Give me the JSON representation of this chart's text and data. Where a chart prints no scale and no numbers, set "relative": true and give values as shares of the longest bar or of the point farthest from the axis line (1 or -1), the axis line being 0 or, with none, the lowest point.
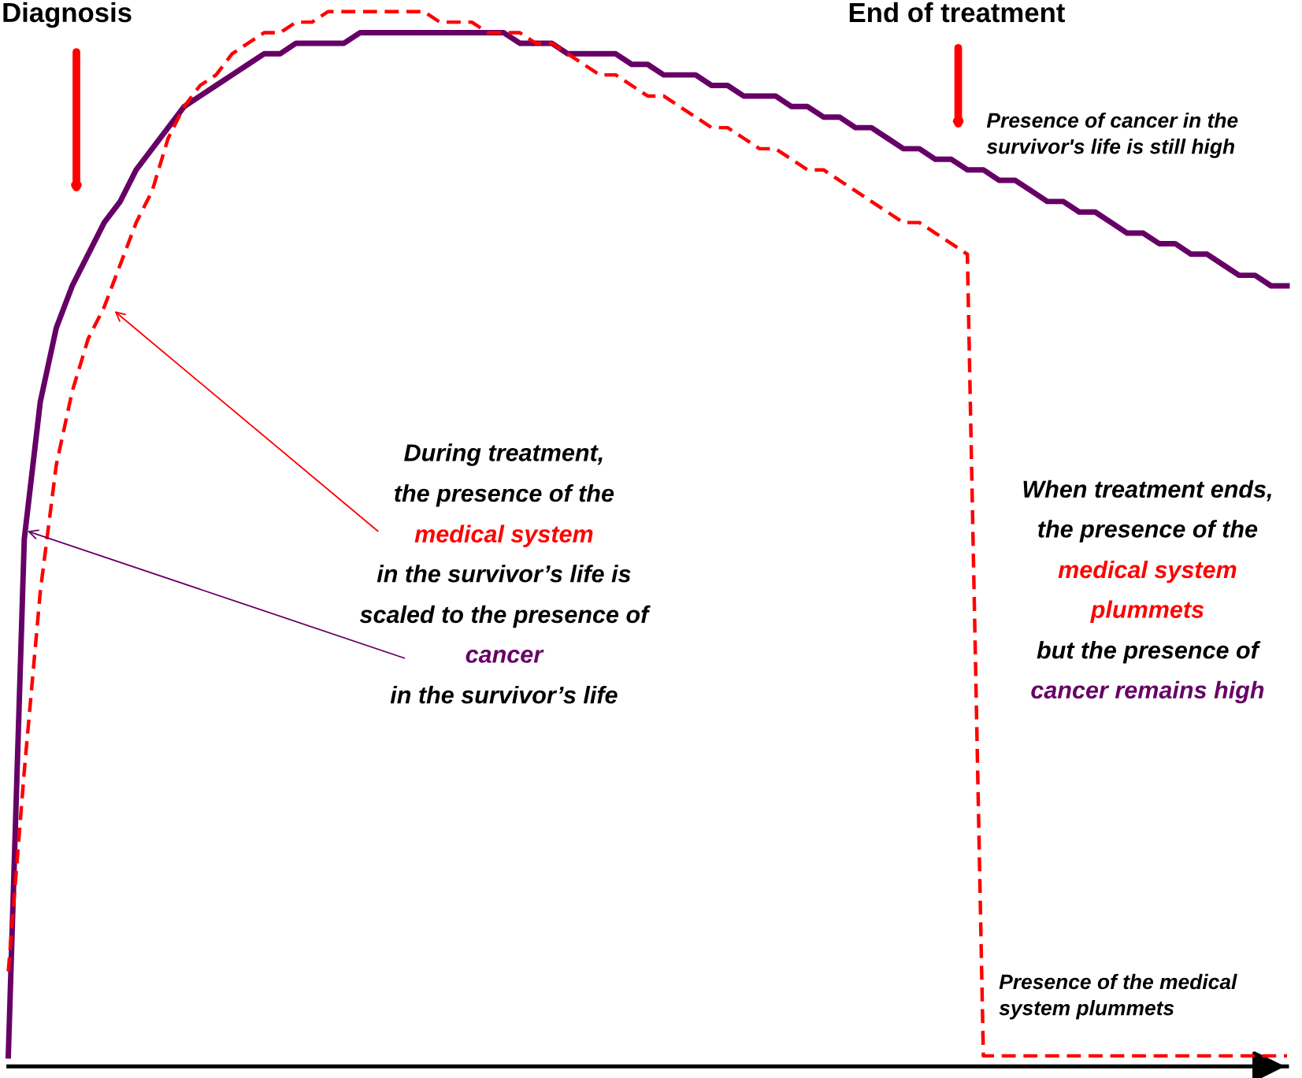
{
  "chart_data": {
    "type": "line",
    "relative": true,
    "categories": [
      null,
      null,
      null,
      null,
      null,
      null,
      null,
      null,
      null,
      null,
      null,
      null,
      null,
      null,
      null,
      null,
      null,
      null,
      null,
      null,
      null,
      null,
      null,
      null,
      null,
      null,
      null,
      null,
      null,
      null,
      null,
      null,
      null,
      null,
      null,
      null,
      null,
      null,
      null,
      null,
      null,
      null,
      null,
      null,
      null,
      null,
      null,
      null,
      null,
      null,
      null,
      null,
      null,
      null,
      null,
      null,
      null,
      null,
      null,
      null,
      null,
      null,
      null,
      null,
      null,
      null,
      null,
      null,
      null,
      null,
      null,
      null,
      null,
      null,
      null,
      null,
      null,
      null,
      null,
      null,
      null
    ],
    "series": [
      {
        "color": "#660066",
        "line_style": "solid",
        "values": [
          0.01,
          0.5,
          0.63,
          0.7,
          0.74,
          0.77,
          0.8,
          0.82,
          0.85,
          0.87,
          0.89,
          0.91,
          0.92,
          0.93,
          0.94,
          0.95,
          0.96,
          0.96,
          0.97,
          0.97,
          0.97,
          0.97,
          0.98,
          0.98,
          0.98,
          0.98,
          0.98,
          0.98,
          0.98,
          0.98,
          0.98,
          0.98,
          0.97,
          0.97,
          0.97,
          0.96,
          0.96,
          0.96,
          0.96,
          0.95,
          0.95,
          0.94,
          0.94,
          0.94,
          0.93,
          0.93,
          0.92,
          0.92,
          0.92,
          0.91,
          0.91,
          0.9,
          0.9,
          0.89,
          0.89,
          0.88,
          0.87,
          0.87,
          0.86,
          0.86,
          0.85,
          0.85,
          0.84,
          0.84,
          0.83,
          0.82,
          0.82,
          0.81,
          0.81,
          0.8,
          0.79,
          0.79,
          0.78,
          0.78,
          0.77,
          0.77,
          0.76,
          0.75,
          0.75,
          0.74,
          0.74
        ]
      },
      {
        "color": "#ff0000",
        "line_style": "dashed",
        "values": [
          0.09,
          0.28,
          0.45,
          0.57,
          0.64,
          0.69,
          0.72,
          0.76,
          0.8,
          0.83,
          0.88,
          0.91,
          0.93,
          0.94,
          0.96,
          0.97,
          0.98,
          0.98,
          0.99,
          0.99,
          1.0,
          1.0,
          1.0,
          1.0,
          1.0,
          1.0,
          1.0,
          0.99,
          0.99,
          0.99,
          0.98,
          0.98,
          0.98,
          0.97,
          0.97,
          0.96,
          0.95,
          0.94,
          0.94,
          0.93,
          0.92,
          0.92,
          0.91,
          0.9,
          0.89,
          0.89,
          0.88,
          0.87,
          0.87,
          0.86,
          0.85,
          0.85,
          0.84,
          0.83,
          0.82,
          0.81,
          0.8,
          0.8,
          0.79,
          0.78,
          0.77,
          0.01,
          0.01,
          0.01,
          0.01,
          0.01,
          0.01,
          0.01,
          0.01,
          0.01,
          0.01,
          0.01,
          0.01,
          0.01,
          0.01,
          0.01,
          0.01,
          0.01,
          0.01,
          0.01,
          0.01
        ]
      }
    ],
    "annotations": [
      {
        "text": "Diagnosis"
      },
      {
        "text": "End of treatment"
      },
      {
        "text": "Presence of cancer in the\nsurvivor's life is still high"
      },
      {
        "text": "During treatment,"
      },
      {
        "text": "the presence of the"
      },
      {
        "text": "medical system"
      },
      {
        "text": "in the survivor’s life is"
      },
      {
        "text": "scaled to the presence of"
      },
      {
        "text": "cancer"
      },
      {
        "text": "in the survivor’s life"
      },
      {
        "text": "When treatment ends,"
      },
      {
        "text": "the presence of the"
      },
      {
        "text": "medical system"
      },
      {
        "text": "plummets"
      },
      {
        "text": "but the presence of"
      },
      {
        "text": "cancer remains high"
      },
      {
        "text": "Presence of the medical\nsystem plummets"
      }
    ]
  }
}
